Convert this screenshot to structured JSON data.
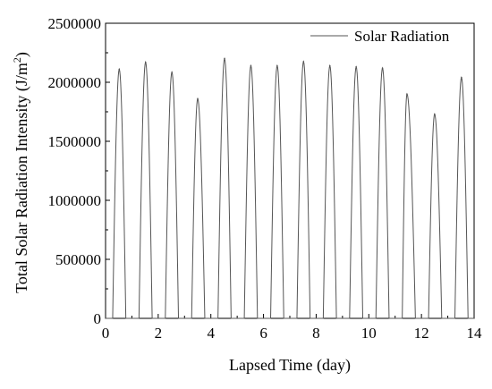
{
  "chart_data": {
    "type": "line",
    "title": "",
    "xlabel": "Lapsed Time (day)",
    "ylabel": "Total Solar Radiation Intensity (J/m²)",
    "ylabel_main": "Total Solar Radiation Intensity (J/m",
    "ylabel_sup": "2",
    "ylabel_end": ")",
    "xlim": [
      0,
      14
    ],
    "ylim": [
      0,
      2500000
    ],
    "x_ticks": [
      0,
      2,
      4,
      6,
      8,
      10,
      12,
      14
    ],
    "y_ticks": [
      0,
      500000,
      1000000,
      1500000,
      2000000,
      2500000
    ],
    "x_tick_labels": [
      "0",
      "2",
      "4",
      "6",
      "8",
      "10",
      "12",
      "14"
    ],
    "y_tick_labels": [
      "0",
      "500000",
      "1000000",
      "1500000",
      "2000000",
      "2500000"
    ],
    "grid": false,
    "legend": {
      "placement": "top-right",
      "entries": [
        "Solar Radiation"
      ]
    },
    "series": [
      {
        "name": "Solar Radiation",
        "color": "#555555",
        "daily_peaks": [
          {
            "day": 0,
            "peak_x": 0.52,
            "peak": 2110000
          },
          {
            "day": 1,
            "peak_x": 1.52,
            "peak": 2170000
          },
          {
            "day": 2,
            "peak_x": 2.52,
            "peak": 2085000
          },
          {
            "day": 3,
            "peak_x": 3.5,
            "peak": 1860000
          },
          {
            "day": 4,
            "peak_x": 4.52,
            "peak": 2200000
          },
          {
            "day": 5,
            "peak_x": 5.52,
            "peak": 2140000
          },
          {
            "day": 6,
            "peak_x": 6.52,
            "peak": 2140000
          },
          {
            "day": 7,
            "peak_x": 7.52,
            "peak": 2175000
          },
          {
            "day": 8,
            "peak_x": 8.52,
            "peak": 2140000
          },
          {
            "day": 9,
            "peak_x": 9.52,
            "peak": 2130000
          },
          {
            "day": 10,
            "peak_x": 10.52,
            "peak": 2120000
          },
          {
            "day": 11,
            "peak_x": 11.45,
            "peak": 1900000
          },
          {
            "day": 12,
            "peak_x": 12.5,
            "peak": 1730000
          },
          {
            "day": 13,
            "peak_x": 13.52,
            "peak": 2040000
          }
        ],
        "daylight_start_offset": 0.27,
        "daylight_end_offset": 0.77
      }
    ]
  }
}
